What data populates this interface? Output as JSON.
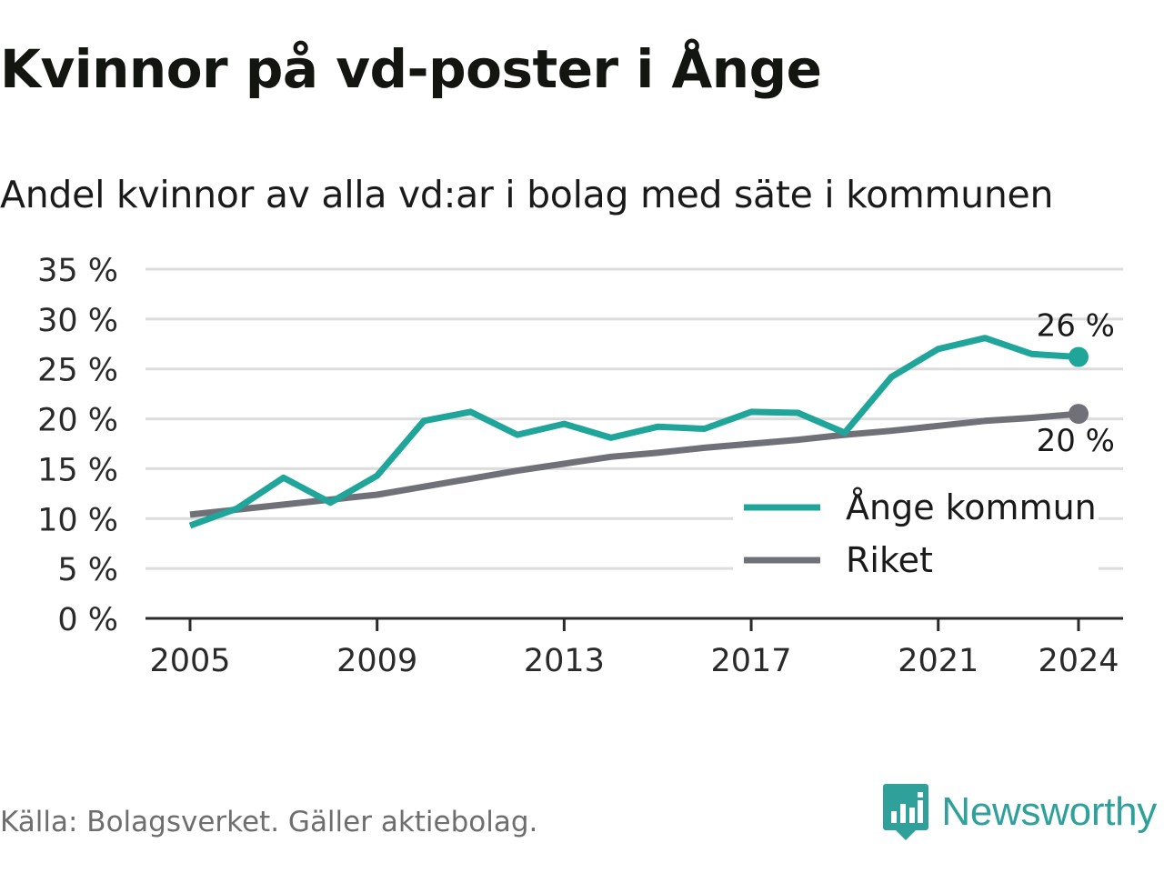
{
  "title": "Kvinnor på vd-poster i Ånge",
  "subtitle": "Andel kvinnor av alla vd:ar i bolag med säte i kommunen",
  "source": "Källa: Bolagsverket. Gäller aktiebolag.",
  "brand": {
    "name": "Newsworthy",
    "icon": "newsworthy-logo-icon"
  },
  "colors": {
    "ange": "#1fa59a",
    "riket": "#707078",
    "grid": "#dcdcdc",
    "axis": "#2a2a2a"
  },
  "chart_data": {
    "type": "line",
    "x": [
      2005,
      2006,
      2007,
      2008,
      2009,
      2010,
      2011,
      2012,
      2013,
      2014,
      2015,
      2016,
      2017,
      2018,
      2019,
      2020,
      2021,
      2022,
      2023,
      2024
    ],
    "xticks": [
      2005,
      2009,
      2013,
      2017,
      2021,
      2024
    ],
    "xtick_labels": [
      "2005",
      "2009",
      "2013",
      "2017",
      "2021",
      "2024"
    ],
    "ylim": [
      0,
      35
    ],
    "yticks": [
      0,
      5,
      10,
      15,
      20,
      25,
      30,
      35
    ],
    "ytick_labels": [
      "0 %",
      "5 %",
      "10 %",
      "15 %",
      "20 %",
      "25 %",
      "30 %",
      "35 %"
    ],
    "grid": true,
    "legend_position": "bottom-right",
    "series": [
      {
        "name": "Ånge kommun",
        "color": "#1fa59a",
        "values": [
          9.3,
          11.0,
          14.1,
          11.6,
          14.3,
          19.8,
          20.7,
          18.4,
          19.5,
          18.1,
          19.2,
          19.0,
          20.7,
          20.6,
          18.6,
          24.2,
          27.0,
          28.1,
          26.5,
          26.2
        ],
        "end_label": "26 %"
      },
      {
        "name": "Riket",
        "color": "#707078",
        "values": [
          10.4,
          10.9,
          11.4,
          11.9,
          12.4,
          13.2,
          14.0,
          14.8,
          15.5,
          16.2,
          16.6,
          17.1,
          17.5,
          17.9,
          18.4,
          18.8,
          19.3,
          19.8,
          20.1,
          20.5
        ],
        "end_label": "20 %"
      }
    ]
  }
}
